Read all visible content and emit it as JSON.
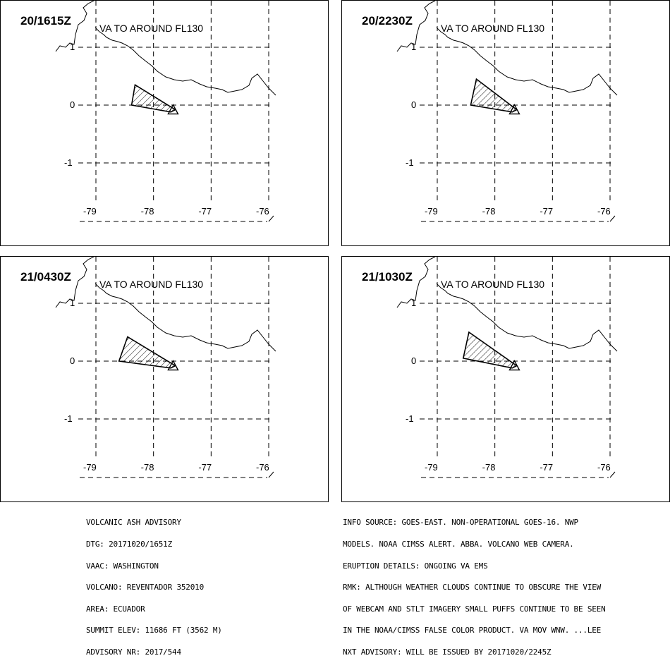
{
  "panels": [
    {
      "time": "20/1615Z",
      "note": "VA TO AROUND FL130",
      "lon_labels": [
        "-79",
        "-78",
        "-77",
        "-76"
      ],
      "lat_labels": [
        "1",
        "0",
        "-1"
      ]
    },
    {
      "time": "20/2230Z",
      "note": "VA TO AROUND FL130",
      "lon_labels": [
        "-79",
        "-78",
        "-77",
        "-76"
      ],
      "lat_labels": [
        "1",
        "0",
        "-1"
      ]
    },
    {
      "time": "21/0430Z",
      "note": "VA TO AROUND FL130",
      "lon_labels": [
        "-79",
        "-78",
        "-77",
        "-76"
      ],
      "lat_labels": [
        "1",
        "0",
        "-1"
      ]
    },
    {
      "time": "21/1030Z",
      "note": "VA TO AROUND FL130",
      "lon_labels": [
        "-79",
        "-78",
        "-77",
        "-76"
      ],
      "lat_labels": [
        "1",
        "0",
        "-1"
      ]
    }
  ],
  "advisory_left": [
    "VOLCANIC ASH ADVISORY",
    "DTG: 20171020/1651Z",
    "VAAC: WASHINGTON",
    "VOLCANO: REVENTADOR 352010",
    "AREA: ECUADOR",
    "SUMMIT ELEV: 11686 FT (3562 M)",
    "ADVISORY NR: 2017/544"
  ],
  "advisory_right": [
    "INFO SOURCE: GOES-EAST. NON-OPERATIONAL GOES-16. NWP",
    "MODELS. NOAA CIMSS ALERT. ABBA. VOLCANO WEB CAMERA.",
    "ERUPTION DETAILS: ONGOING VA EMS",
    "RMK: ALTHOUGH WEATHER CLOUDS CONTINUE TO OBSCURE THE VIEW",
    "OF WEBCAM AND STLT IMAGERY SMALL PUFFS CONTINUE TO BE SEEN",
    "IN THE NOAA/CIMSS FALSE COLOR PRODUCT. VA MOV WNW. ...LEE",
    "NXT ADVISORY: WILL BE ISSUED BY 20171020/2245Z"
  ],
  "map": {
    "volcano_lon": -77.66,
    "volcano_lat": -0.08,
    "ash_polygons": [
      [
        [
          -78.32,
          0.35
        ],
        [
          -78.38,
          0.0
        ],
        [
          -77.7,
          -0.12
        ],
        [
          -77.62,
          -0.08
        ]
      ],
      [
        [
          -78.32,
          0.45
        ],
        [
          -78.42,
          0.0
        ],
        [
          -77.7,
          -0.12
        ],
        [
          -77.62,
          -0.08
        ]
      ],
      [
        [
          -78.45,
          0.42
        ],
        [
          -78.6,
          0.0
        ],
        [
          -77.7,
          -0.12
        ],
        [
          -77.62,
          -0.08
        ]
      ],
      [
        [
          -78.45,
          0.5
        ],
        [
          -78.55,
          0.05
        ],
        [
          -77.7,
          -0.12
        ],
        [
          -77.62,
          -0.08
        ]
      ]
    ]
  }
}
